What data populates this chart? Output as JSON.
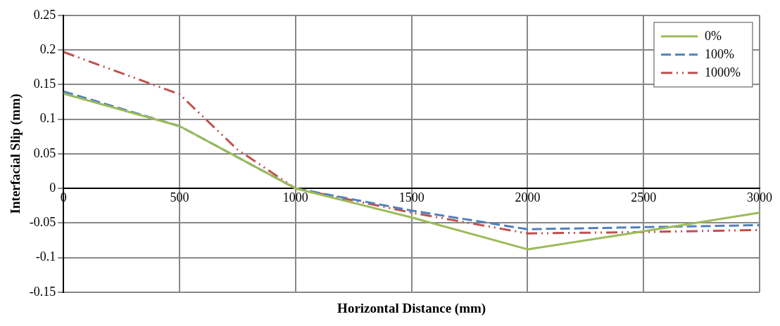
{
  "chart_data": {
    "type": "line",
    "xlabel": "Horizontal Distance (mm)",
    "ylabel": "Interfacial Slip (mm)",
    "xlim": [
      0,
      3000
    ],
    "xticks": [
      0,
      500,
      1000,
      1500,
      2000,
      2500,
      3000
    ],
    "ylim": [
      -0.15,
      0.25
    ],
    "yticks": [
      -0.15,
      -0.1,
      -0.05,
      0,
      0.05,
      0.1,
      0.15,
      0.2,
      0.25
    ],
    "grid": true,
    "legend": "top right",
    "marker": "none",
    "series": [
      {
        "name": "0%",
        "color": "#9bbb59",
        "line_style": "solid",
        "x": [
          0,
          500,
          1000,
          1500,
          2000,
          2500,
          3000
        ],
        "values": [
          0.137,
          0.09,
          0,
          -0.042,
          -0.088,
          -0.062,
          -0.035
        ]
      },
      {
        "name": "100%",
        "color": "#4f81bd",
        "line_style": "dashed",
        "x": [
          0,
          500,
          1000,
          1500,
          2000,
          2500,
          3000
        ],
        "values": [
          0.14,
          0.09,
          0,
          -0.032,
          -0.059,
          -0.056,
          -0.053
        ]
      },
      {
        "name": "1000%",
        "color": "#c0504d",
        "line_style": "dotted",
        "x": [
          0,
          500,
          750,
          1000,
          1500,
          2000,
          2500,
          3000
        ],
        "values": [
          0.197,
          0.136,
          0.056,
          0,
          -0.035,
          -0.065,
          -0.063,
          -0.06
        ]
      }
    ]
  }
}
